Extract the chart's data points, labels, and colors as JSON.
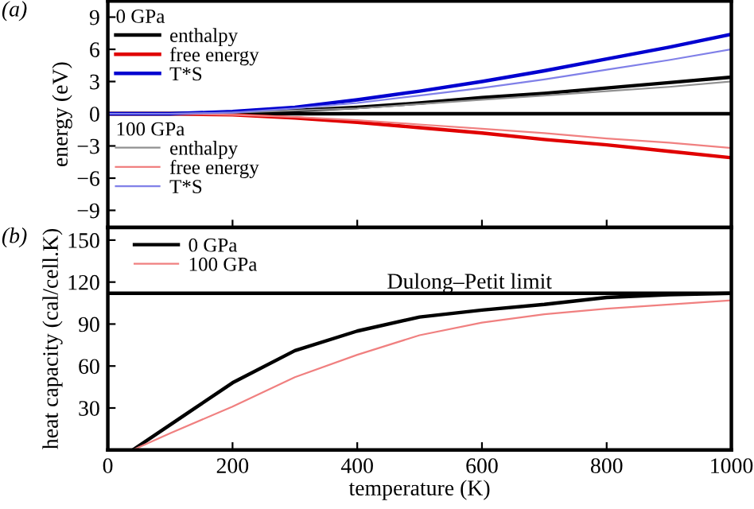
{
  "chart_data": [
    {
      "type": "line",
      "ylabel": "energy (eV)",
      "annotations": [
        "(a)",
        "0 GPa",
        "100 GPa"
      ],
      "x": [
        0,
        100,
        200,
        300,
        400,
        500,
        600,
        700,
        800,
        900,
        1000
      ],
      "series": [
        {
          "name": "enthalpy",
          "color": "#000000",
          "values": [
            0,
            0,
            0.1,
            0.3,
            0.6,
            1.0,
            1.5,
            1.9,
            2.4,
            2.9,
            3.4
          ]
        },
        {
          "name": "free energy",
          "color": "#e00000",
          "values": [
            0,
            0,
            -0.1,
            -0.4,
            -0.8,
            -1.3,
            -1.8,
            -2.4,
            -2.9,
            -3.5,
            -4.1
          ]
        },
        {
          "name": "T*S",
          "color": "#0000d0",
          "values": [
            0,
            0,
            0.2,
            0.6,
            1.3,
            2.1,
            3.0,
            4.0,
            5.1,
            6.2,
            7.4
          ]
        },
        {
          "name": "enthalpy",
          "color": "#909090",
          "values": [
            0,
            0,
            0.1,
            0.3,
            0.5,
            0.9,
            1.3,
            1.7,
            2.1,
            2.5,
            3.0
          ]
        },
        {
          "name": "free energy",
          "color": "#f08080",
          "values": [
            0,
            0,
            -0.1,
            -0.3,
            -0.6,
            -1.0,
            -1.4,
            -1.8,
            -2.3,
            -2.7,
            -3.2
          ]
        },
        {
          "name": "T*S",
          "color": "#8080e8",
          "values": [
            0,
            0,
            0.1,
            0.5,
            1.0,
            1.7,
            2.4,
            3.2,
            4.1,
            5.0,
            6.0
          ]
        }
      ],
      "xlim": [
        0,
        1000
      ],
      "ylim": [
        -10.6,
        10.5
      ],
      "yticks": [
        -9,
        -6,
        -3,
        0,
        3,
        6,
        9
      ],
      "ref_lines": [
        {
          "axis": "y",
          "value": 0,
          "color": "#000000"
        }
      ],
      "tick_labels": "y",
      "legend": "top left",
      "grid": false
    },
    {
      "type": "line",
      "xlabel": "temperature (K)",
      "ylabel": "heat capacity (cal/cell.K)",
      "annotations": [
        "(b)"
      ],
      "x": [
        40,
        100,
        200,
        300,
        400,
        500,
        600,
        700,
        800,
        900,
        1000
      ],
      "series": [
        {
          "name": "0 GPa",
          "color": "#000000",
          "values": [
            0,
            18,
            48,
            71,
            85,
            95,
            100,
            104,
            109,
            111,
            112
          ]
        },
        {
          "name": "100 GPa",
          "color": "#f08080",
          "values": [
            0,
            12,
            31,
            52,
            68,
            82,
            91,
            97,
            101,
            104,
            107
          ]
        }
      ],
      "xlim": [
        0,
        1000
      ],
      "ylim": [
        0,
        159
      ],
      "xticks": [
        0,
        200,
        400,
        600,
        800,
        1000
      ],
      "yticks": [
        30,
        60,
        90,
        120,
        150
      ],
      "ref_lines": [
        {
          "axis": "y",
          "value": 112,
          "label": "Dulong–Petit limit",
          "color": "#000000"
        }
      ],
      "legend": "top left",
      "grid": false
    }
  ]
}
